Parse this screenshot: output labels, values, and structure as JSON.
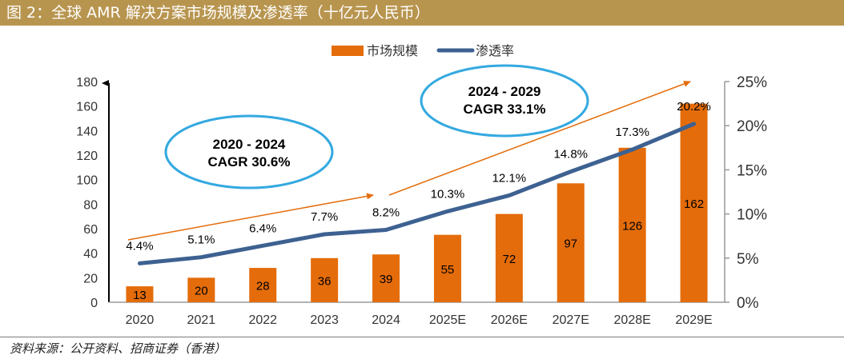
{
  "title": "图 2：全球 AMR 解决方案市场规模及渗透率（十亿元人民币）",
  "source": "资料来源：公开资料、招商证券（香港）",
  "colors": {
    "bar": "#e46c0a",
    "line": "#3d6191",
    "arrow": "#e46c0a",
    "ellipse": "#34a9e0",
    "title_bg": "#b8954f"
  },
  "chart_data": {
    "type": "bar+line",
    "title": "全球 AMR 解决方案市场规模及渗透率（十亿元人民币）",
    "categories": [
      "2020",
      "2021",
      "2022",
      "2023",
      "2024",
      "2025E",
      "2026E",
      "2027E",
      "2028E",
      "2029E"
    ],
    "series": [
      {
        "name": "市场规模",
        "type": "bar",
        "axis": "left",
        "values": [
          13,
          20,
          28,
          36,
          39,
          55,
          72,
          97,
          126,
          162
        ]
      },
      {
        "name": "渗透率",
        "type": "line",
        "axis": "right",
        "values": [
          4.4,
          5.1,
          6.4,
          7.7,
          8.2,
          10.3,
          12.1,
          14.8,
          17.3,
          20.2
        ],
        "labels": [
          "4.4%",
          "5.1%",
          "6.4%",
          "7.7%",
          "8.2%",
          "10.3%",
          "12.1%",
          "14.8%",
          "17.3%",
          "20.2%"
        ]
      }
    ],
    "y_left": {
      "min": 0,
      "max": 180,
      "ticks": [
        0,
        20,
        40,
        60,
        80,
        100,
        120,
        140,
        160,
        180
      ]
    },
    "y_right": {
      "min": 0,
      "max": 25,
      "ticks": [
        "0%",
        "5%",
        "10%",
        "15%",
        "20%",
        "25%"
      ]
    },
    "legend": {
      "position": "top-center",
      "items": [
        "市场规模",
        "渗透率"
      ]
    },
    "annotations": [
      {
        "line1": "2020 - 2024",
        "line2": "CAGR 30.6%"
      },
      {
        "line1": "2024 - 2029",
        "line2": "CAGR 33.1%"
      }
    ]
  }
}
